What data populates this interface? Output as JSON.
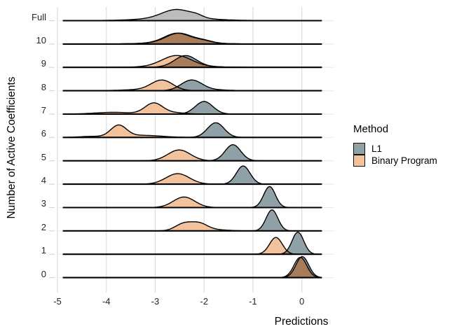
{
  "colors": {
    "l1": "#8FA0A7",
    "binary_program": "#F1C29C",
    "full": "#BCBCBC",
    "overlap": "#A87C58",
    "outline": "#000000",
    "grid_vertical": "#DCDCDC",
    "grid_horizontal": "#EBEBEB",
    "axis_tick": "#D6D6D6"
  },
  "legend": {
    "title": "Method",
    "entries": [
      {
        "label": "L1",
        "color_key": "l1"
      },
      {
        "label": "Binary Program",
        "color_key": "binary_program"
      }
    ]
  },
  "chart_data": {
    "type": "area",
    "variant": "ridgeline",
    "xlabel": "Predictions",
    "ylabel": "Number of Active Coefficients",
    "x_ticks": [
      -5,
      -4,
      -3,
      -2,
      -1,
      0
    ],
    "x_tick_labels": [
      "-5",
      "-4",
      "-3",
      "-2",
      "-1",
      "0"
    ],
    "xlim": [
      -5.17,
      0.65
    ],
    "baseline_extent": [
      -4.89,
      0.41
    ],
    "y_categories": [
      "Full",
      "10",
      "9",
      "8",
      "7",
      "6",
      "5",
      "4",
      "3",
      "2",
      "1",
      "0"
    ],
    "grid": true,
    "legend_position": "right",
    "rows": [
      {
        "label": "Full",
        "dists": [
          {
            "method": "Full",
            "peak": -2.55,
            "components": [
              {
                "mean": -2.56,
                "sd": 0.3,
                "h": 12.5
              },
              {
                "mean": -2.55,
                "sd": 0.7,
                "h": 3.5
              },
              {
                "mean": -2.15,
                "sd": 0.12,
                "h": 2.5
              }
            ]
          }
        ]
      },
      {
        "label": "10",
        "dists": [
          {
            "method": "Binary Program",
            "peak": -2.55,
            "components": [
              {
                "mean": -2.55,
                "sd": 0.26,
                "h": 13
              },
              {
                "mean": -2.5,
                "sd": 0.55,
                "h": 2.5
              },
              {
                "mean": -2.02,
                "sd": 0.18,
                "h": 3
              }
            ]
          },
          {
            "method": "L1",
            "peak": -2.5,
            "components": [
              {
                "mean": -2.52,
                "sd": 0.26,
                "h": 13
              },
              {
                "mean": -2.48,
                "sd": 0.55,
                "h": 2.5
              },
              {
                "mean": -2.0,
                "sd": 0.18,
                "h": 3
              }
            ]
          }
        ]
      },
      {
        "label": "9",
        "dists": [
          {
            "method": "Binary Program",
            "peak": -2.56,
            "components": [
              {
                "mean": -2.56,
                "sd": 0.3,
                "h": 15.5
              },
              {
                "mean": -2.5,
                "sd": 0.6,
                "h": 1.5
              }
            ]
          },
          {
            "method": "L1",
            "peak": -2.38,
            "components": [
              {
                "mean": -2.38,
                "sd": 0.22,
                "h": 15.5
              },
              {
                "mean": -2.2,
                "sd": 0.45,
                "h": 1.5
              }
            ]
          }
        ]
      },
      {
        "label": "8",
        "dists": [
          {
            "method": "Binary Program",
            "peak": -2.86,
            "components": [
              {
                "mean": -2.86,
                "sd": 0.22,
                "h": 14.5
              },
              {
                "mean": -3.3,
                "sd": 0.4,
                "h": 1.5
              }
            ]
          },
          {
            "method": "L1",
            "peak": -2.26,
            "components": [
              {
                "mean": -2.26,
                "sd": 0.21,
                "h": 14.5
              },
              {
                "mean": -1.9,
                "sd": 0.35,
                "h": 1.5
              }
            ]
          }
        ]
      },
      {
        "label": "7",
        "dists": [
          {
            "method": "Binary Program",
            "peak": -3.03,
            "components": [
              {
                "mean": -3.03,
                "sd": 0.18,
                "h": 15.5
              },
              {
                "mean": -3.85,
                "sd": 0.38,
                "h": 2.5
              },
              {
                "mean": -2.62,
                "sd": 0.22,
                "h": 2
              }
            ]
          },
          {
            "method": "L1",
            "peak": -2.0,
            "components": [
              {
                "mean": -2.0,
                "sd": 0.18,
                "h": 18
              }
            ]
          }
        ]
      },
      {
        "label": "6",
        "dists": [
          {
            "method": "Binary Program",
            "peak": -3.75,
            "components": [
              {
                "mean": -3.75,
                "sd": 0.16,
                "h": 16.5
              },
              {
                "mean": -3.25,
                "sd": 0.38,
                "h": 3
              },
              {
                "mean": -4.3,
                "sd": 0.25,
                "h": 1.5
              }
            ]
          },
          {
            "method": "L1",
            "peak": -1.76,
            "components": [
              {
                "mean": -1.76,
                "sd": 0.17,
                "h": 21
              }
            ]
          }
        ]
      },
      {
        "label": "5",
        "dists": [
          {
            "method": "Binary Program",
            "peak": -2.51,
            "components": [
              {
                "mean": -2.51,
                "sd": 0.23,
                "h": 15.5
              }
            ]
          },
          {
            "method": "L1",
            "peak": -1.41,
            "components": [
              {
                "mean": -1.41,
                "sd": 0.16,
                "h": 23
              }
            ]
          }
        ]
      },
      {
        "label": "4",
        "dists": [
          {
            "method": "Binary Program",
            "peak": -2.54,
            "components": [
              {
                "mean": -2.54,
                "sd": 0.24,
                "h": 15
              }
            ]
          },
          {
            "method": "L1",
            "peak": -1.2,
            "components": [
              {
                "mean": -1.2,
                "sd": 0.14,
                "h": 26
              }
            ]
          }
        ]
      },
      {
        "label": "3",
        "dists": [
          {
            "method": "Binary Program",
            "peak": -2.41,
            "components": [
              {
                "mean": -2.41,
                "sd": 0.22,
                "h": 15
              }
            ]
          },
          {
            "method": "L1",
            "peak": -0.66,
            "components": [
              {
                "mean": -0.66,
                "sd": 0.12,
                "h": 30
              }
            ]
          }
        ]
      },
      {
        "label": "2",
        "dists": [
          {
            "method": "Binary Program",
            "peak": -2.25,
            "components": [
              {
                "mean": -2.42,
                "sd": 0.17,
                "h": 10
              },
              {
                "mean": -2.1,
                "sd": 0.17,
                "h": 10
              },
              {
                "mean": -1.75,
                "sd": 0.25,
                "h": 1.5
              }
            ]
          },
          {
            "method": "L1",
            "peak": -0.61,
            "components": [
              {
                "mean": -0.61,
                "sd": 0.12,
                "h": 30
              }
            ]
          }
        ]
      },
      {
        "label": "1",
        "dists": [
          {
            "method": "Binary Program",
            "peak": -0.53,
            "components": [
              {
                "mean": -0.53,
                "sd": 0.13,
                "h": 24
              }
            ]
          },
          {
            "method": "L1",
            "peak": -0.08,
            "components": [
              {
                "mean": -0.08,
                "sd": 0.12,
                "h": 31.5
              }
            ]
          }
        ]
      },
      {
        "label": "0",
        "dists": [
          {
            "method": "Binary Program",
            "peak": -0.03,
            "components": [
              {
                "mean": -0.03,
                "sd": 0.13,
                "h": 29
              }
            ]
          },
          {
            "method": "L1",
            "peak": 0.01,
            "components": [
              {
                "mean": 0.01,
                "sd": 0.13,
                "h": 30
              }
            ]
          }
        ]
      }
    ]
  }
}
